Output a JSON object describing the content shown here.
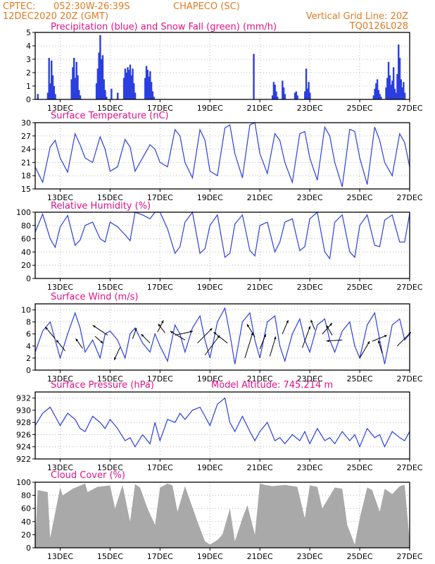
{
  "header": {
    "source": "CPTEC:",
    "coords": "052:30W-26:39S",
    "station": "CHAPECO (SC)",
    "run": "12DEC2020 20Z (GMT)",
    "grid_note": "Vertical Grid Line: 20Z",
    "model": "TQ0126L028"
  },
  "colors": {
    "series": "#2b3fe0",
    "snow": "#22c43a",
    "cloud": "#a9a9a9",
    "title": "#e0118a",
    "header": "#e07b22"
  },
  "chart_data": [
    {
      "type": "bar",
      "title": "Precipitation (blue) and Snow Fall (green) (mm/h)",
      "ylim": [
        0,
        5
      ],
      "yticks": [
        0,
        1,
        2,
        3,
        4,
        5
      ],
      "x_range": [
        12.0,
        27.0
      ],
      "xtick_values": [
        13,
        15,
        17,
        19,
        21,
        23,
        25,
        27
      ],
      "xtick_labels": [
        "13DEC",
        "15DEC",
        "17DEC",
        "19DEC",
        "21DEC",
        "23DEC",
        "25DEC",
        "27DEC"
      ],
      "vertical_grid": "20Z",
      "series": [
        {
          "name": "Precipitation",
          "x": [
            12.1,
            12.5,
            12.55,
            12.6,
            12.65,
            12.7,
            12.75,
            12.8,
            13.45,
            13.5,
            13.55,
            13.6,
            13.65,
            13.7,
            13.75,
            13.8,
            14.45,
            14.5,
            14.55,
            14.6,
            14.65,
            14.7,
            14.75,
            14.8,
            14.85,
            15.05,
            15.3,
            15.55,
            15.6,
            15.65,
            15.7,
            15.75,
            15.8,
            15.85,
            15.9,
            15.95,
            16.0,
            16.4,
            16.45,
            16.5,
            16.55,
            16.6,
            16.65,
            16.7,
            16.75,
            20.75,
            21.5,
            21.55,
            21.6,
            21.65,
            21.7,
            21.9,
            21.95,
            22.0,
            22.4,
            22.45,
            22.5,
            22.8,
            22.85,
            22.9,
            22.95,
            23.0,
            25.55,
            25.6,
            25.65,
            25.7,
            25.75,
            25.8,
            25.85,
            26.05,
            26.1,
            26.15,
            26.2,
            26.25,
            26.3,
            26.35,
            26.4,
            26.45,
            26.5,
            26.55,
            26.6,
            26.65,
            26.7,
            26.75,
            26.8
          ],
          "values": [
            0.4,
            0.5,
            3.1,
            1.2,
            2.9,
            1.8,
            1.0,
            0.4,
            1.5,
            2.4,
            3.1,
            1.6,
            2.8,
            1.8,
            0.7,
            0.3,
            1.2,
            2.3,
            3.5,
            4.8,
            3.0,
            3.3,
            1.5,
            0.7,
            0.2,
            0.8,
            0.5,
            1.6,
            2.3,
            2.0,
            2.4,
            2.2,
            2.6,
            1.8,
            2.3,
            1.2,
            0.5,
            1.6,
            2.5,
            2.2,
            1.7,
            2.1,
            1.3,
            0.6,
            0.2,
            3.4,
            0.3,
            1.3,
            1.1,
            0.6,
            0.2,
            1.4,
            0.9,
            0.4,
            0.5,
            0.6,
            0.3,
            0.6,
            2.3,
            0.8,
            1.3,
            0.5,
            0.3,
            0.8,
            1.2,
            1.5,
            0.7,
            0.4,
            0.2,
            0.9,
            1.6,
            2.8,
            1.8,
            1.1,
            1.4,
            2.4,
            0.8,
            0.5,
            1.9,
            4.1,
            3.1,
            1.5,
            0.9,
            1.3,
            0.5
          ]
        },
        {
          "name": "Snow Fall",
          "x": [],
          "values": []
        }
      ]
    },
    {
      "type": "line",
      "title": "Surface Temperature (nC)",
      "ylim": [
        15,
        30
      ],
      "yticks": [
        15,
        18,
        21,
        24,
        27,
        30
      ],
      "x_range": [
        12.0,
        27.0
      ],
      "xtick_values": [
        13,
        15,
        17,
        19,
        21,
        23,
        25,
        27
      ],
      "xtick_labels": [
        "13DEC",
        "15DEC",
        "17DEC",
        "19DEC",
        "21DEC",
        "23DEC",
        "25DEC",
        "27DEC"
      ],
      "x": [
        12.0,
        12.3,
        12.6,
        12.8,
        13.0,
        13.3,
        13.6,
        13.8,
        14.0,
        14.3,
        14.6,
        14.8,
        15.0,
        15.3,
        15.6,
        15.8,
        16.0,
        16.3,
        16.6,
        16.8,
        17.0,
        17.3,
        17.6,
        17.8,
        18.0,
        18.3,
        18.6,
        18.8,
        19.0,
        19.3,
        19.6,
        19.8,
        20.0,
        20.3,
        20.6,
        20.8,
        21.0,
        21.3,
        21.6,
        21.8,
        22.0,
        22.3,
        22.6,
        22.8,
        23.0,
        23.3,
        23.6,
        23.8,
        24.0,
        24.3,
        24.6,
        24.8,
        25.0,
        25.3,
        25.6,
        25.8,
        26.0,
        26.3,
        26.6,
        26.8,
        27.0
      ],
      "values": [
        20,
        16.5,
        24.5,
        26,
        22,
        18.8,
        27.5,
        25,
        22,
        21,
        26.8,
        24,
        19,
        20,
        26.2,
        24.5,
        19,
        22,
        25,
        24,
        21,
        20,
        28.4,
        27,
        21,
        17.5,
        28.4,
        26,
        19,
        18,
        28.8,
        29.5,
        23,
        17.5,
        29.5,
        30,
        23,
        18.5,
        27.5,
        26,
        21,
        16.5,
        27.5,
        28,
        22,
        17,
        29,
        27,
        21,
        15.5,
        28.5,
        28,
        22,
        16,
        29,
        26,
        21,
        18,
        27.5,
        25.5,
        20
      ]
    },
    {
      "type": "line",
      "title": "Relative Humidity (%)",
      "ylim": [
        0,
        100
      ],
      "yticks": [
        0,
        20,
        40,
        60,
        80,
        100
      ],
      "x_range": [
        12.0,
        27.0
      ],
      "xtick_values": [
        13,
        15,
        17,
        19,
        21,
        23,
        25,
        27
      ],
      "xtick_labels": [
        "13DEC",
        "15DEC",
        "17DEC",
        "19DEC",
        "21DEC",
        "23DEC",
        "25DEC",
        "27DEC"
      ],
      "x": [
        12.0,
        12.3,
        12.6,
        12.8,
        13.0,
        13.3,
        13.6,
        13.8,
        14.0,
        14.3,
        14.6,
        14.8,
        15.0,
        15.3,
        15.6,
        15.8,
        16.0,
        16.3,
        16.6,
        16.8,
        17.0,
        17.3,
        17.6,
        17.8,
        18.0,
        18.3,
        18.6,
        18.8,
        19.0,
        19.3,
        19.6,
        19.8,
        20.0,
        20.3,
        20.6,
        20.8,
        21.0,
        21.3,
        21.6,
        21.8,
        22.0,
        22.3,
        22.6,
        22.8,
        23.0,
        23.3,
        23.6,
        23.8,
        24.0,
        24.3,
        24.6,
        24.8,
        25.0,
        25.3,
        25.6,
        25.8,
        26.0,
        26.3,
        26.6,
        26.8,
        27.0
      ],
      "values": [
        70,
        97,
        60,
        47,
        78,
        95,
        50,
        58,
        80,
        85,
        60,
        55,
        85,
        78,
        66,
        57,
        100,
        96,
        90,
        100,
        100,
        75,
        38,
        48,
        85,
        100,
        38,
        45,
        80,
        96,
        32,
        38,
        82,
        96,
        42,
        34,
        80,
        85,
        40,
        55,
        85,
        90,
        42,
        48,
        90,
        100,
        40,
        30,
        85,
        96,
        40,
        32,
        80,
        96,
        50,
        48,
        88,
        96,
        55,
        55,
        98
      ]
    },
    {
      "type": "line",
      "title": "Surface Wind (m/s)",
      "ylim": [
        0,
        11
      ],
      "yticks": [
        0,
        2,
        4,
        6,
        8,
        10
      ],
      "x_range": [
        12.0,
        27.0
      ],
      "xtick_values": [
        13,
        15,
        17,
        19,
        21,
        23,
        25,
        27
      ],
      "xtick_labels": [
        "13DEC",
        "15DEC",
        "17DEC",
        "19DEC",
        "21DEC",
        "23DEC",
        "25DEC",
        "27DEC"
      ],
      "x": [
        12.0,
        12.3,
        12.6,
        12.8,
        13.0,
        13.3,
        13.6,
        13.8,
        14.0,
        14.3,
        14.6,
        14.8,
        15.0,
        15.3,
        15.6,
        15.8,
        16.0,
        16.3,
        16.6,
        16.8,
        17.0,
        17.3,
        17.6,
        17.8,
        18.0,
        18.3,
        18.6,
        18.8,
        19.0,
        19.3,
        19.6,
        19.8,
        20.0,
        20.3,
        20.6,
        20.8,
        21.0,
        21.3,
        21.6,
        21.8,
        22.0,
        22.3,
        22.6,
        22.8,
        23.0,
        23.3,
        23.6,
        23.8,
        24.0,
        24.3,
        24.6,
        24.8,
        25.0,
        25.3,
        25.6,
        25.8,
        26.0,
        26.3,
        26.6,
        26.8,
        27.0
      ],
      "values": [
        3,
        6.5,
        8,
        5,
        2,
        6,
        9.5,
        7,
        3,
        5,
        2,
        6,
        6.5,
        5,
        2,
        6,
        7,
        4.5,
        3,
        6,
        4,
        1.5,
        7.5,
        6,
        3,
        7,
        9,
        5,
        2,
        8,
        10.3,
        6,
        1,
        8,
        9.5,
        5,
        2,
        8,
        9,
        4,
        1.5,
        6,
        8.5,
        5,
        3,
        7.5,
        8.5,
        5,
        3,
        6.5,
        8,
        4,
        2,
        7.5,
        9.5,
        5,
        1,
        7.5,
        8.5,
        5,
        6
      ],
      "wind_vectors": [
        {
          "x": 12.8,
          "y": 5.2,
          "u": -1.0,
          "v": 1.2
        },
        {
          "x": 13.2,
          "y": 3.2,
          "u": -0.9,
          "v": 1.1
        },
        {
          "x": 13.9,
          "y": 3.6,
          "u": -0.7,
          "v": 1.0
        },
        {
          "x": 14.4,
          "y": 5.6,
          "u": 0.8,
          "v": -0.7
        },
        {
          "x": 14.9,
          "y": 5.8,
          "u": -1.5,
          "v": 1.0
        },
        {
          "x": 15.4,
          "y": 3.8,
          "u": -0.6,
          "v": -1.3
        },
        {
          "x": 15.9,
          "y": 5.2,
          "u": 0.4,
          "v": 1.1
        },
        {
          "x": 16.6,
          "y": 4.5,
          "u": -0.9,
          "v": 0.9
        },
        {
          "x": 16.9,
          "y": 6.3,
          "u": 0.6,
          "v": 1.2
        },
        {
          "x": 17.2,
          "y": 6.2,
          "u": -0.7,
          "v": 0.9
        },
        {
          "x": 17.6,
          "y": 5.8,
          "u": 1.8,
          "v": 0.4
        },
        {
          "x": 18.0,
          "y": 5.0,
          "u": -1.5,
          "v": 0.9
        },
        {
          "x": 18.5,
          "y": 4.5,
          "u": 1.5,
          "v": 1.5
        },
        {
          "x": 18.8,
          "y": 2.5,
          "u": 1.5,
          "v": 2.0
        },
        {
          "x": 19.7,
          "y": 4.5,
          "u": -1.4,
          "v": 1.1
        },
        {
          "x": 20.4,
          "y": 2.0,
          "u": 0.8,
          "v": 2.6
        },
        {
          "x": 20.8,
          "y": 5.5,
          "u": -0.8,
          "v": 1.3
        },
        {
          "x": 21.0,
          "y": 3.5,
          "u": 0.6,
          "v": 1.5
        },
        {
          "x": 21.4,
          "y": 2.3,
          "u": 0.6,
          "v": 2.0
        },
        {
          "x": 21.9,
          "y": 6.0,
          "u": 0.6,
          "v": 1.4
        },
        {
          "x": 22.7,
          "y": 3.7,
          "u": 0.8,
          "v": 2.2
        },
        {
          "x": 23.2,
          "y": 6.7,
          "u": -0.4,
          "v": 1.0
        },
        {
          "x": 23.5,
          "y": 6.0,
          "u": 1.0,
          "v": 1.1
        },
        {
          "x": 23.9,
          "y": 5.8,
          "u": -0.6,
          "v": 1.0
        },
        {
          "x": 24.3,
          "y": 5.0,
          "u": -1.6,
          "v": -0.1
        },
        {
          "x": 25.0,
          "y": 2.0,
          "u": 1.0,
          "v": 1.7
        },
        {
          "x": 25.5,
          "y": 4.8,
          "u": 1.5,
          "v": 0.6
        },
        {
          "x": 25.9,
          "y": 2.8,
          "u": -0.4,
          "v": 1.3
        },
        {
          "x": 26.5,
          "y": 4.0,
          "u": 1.4,
          "v": 1.4
        }
      ]
    },
    {
      "type": "line",
      "title": "Surface Pressure (hPa)",
      "annotation": "Model Altitude: 745.214 m",
      "ylim": [
        922,
        933
      ],
      "yticks": [
        922,
        924,
        926,
        928,
        930,
        932
      ],
      "x_range": [
        12.0,
        27.0
      ],
      "xtick_values": [
        13,
        15,
        17,
        19,
        21,
        23,
        25,
        27
      ],
      "xtick_labels": [
        "13DEC",
        "15DEC",
        "17DEC",
        "19DEC",
        "21DEC",
        "23DEC",
        "25DEC",
        "27DEC"
      ],
      "x": [
        12.0,
        12.3,
        12.6,
        12.8,
        13.0,
        13.3,
        13.6,
        13.8,
        14.0,
        14.3,
        14.6,
        14.8,
        15.0,
        15.3,
        15.6,
        15.8,
        16.0,
        16.3,
        16.6,
        16.8,
        17.0,
        17.3,
        17.6,
        17.8,
        18.0,
        18.3,
        18.6,
        18.8,
        19.0,
        19.3,
        19.6,
        19.8,
        20.0,
        20.3,
        20.6,
        20.8,
        21.0,
        21.3,
        21.6,
        21.8,
        22.0,
        22.3,
        22.6,
        22.8,
        23.0,
        23.3,
        23.6,
        23.8,
        24.0,
        24.3,
        24.6,
        24.8,
        25.0,
        25.3,
        25.6,
        25.8,
        26.0,
        26.3,
        26.6,
        26.8,
        27.0
      ],
      "values": [
        927.5,
        929.5,
        930.5,
        929,
        927.5,
        929.5,
        928.5,
        927,
        926.5,
        929,
        928,
        927,
        928.5,
        927,
        925,
        925.5,
        924,
        926,
        924.5,
        928,
        925,
        928.5,
        928,
        929.5,
        928.5,
        930,
        930.5,
        929,
        927.5,
        931,
        932,
        928,
        926.5,
        929,
        926.5,
        925,
        926.5,
        928,
        925,
        925.5,
        924.5,
        926,
        925,
        926.5,
        924.5,
        927,
        925,
        925.5,
        924.5,
        926.5,
        925,
        926,
        924,
        927,
        925.5,
        926,
        924,
        926.5,
        925.5,
        925,
        926.5
      ]
    },
    {
      "type": "area",
      "title": "Cloud Cover (%)",
      "ylim": [
        0,
        100
      ],
      "yticks": [
        0,
        20,
        40,
        60,
        80,
        100
      ],
      "x_range": [
        12.0,
        27.0
      ],
      "xtick_values": [
        13,
        15,
        17,
        19,
        21,
        23,
        25,
        27
      ],
      "xtick_labels": [
        "13DEC",
        "15DEC",
        "17DEC",
        "19DEC",
        "21DEC",
        "23DEC",
        "25DEC",
        "27DEC"
      ],
      "x": [
        12.0,
        12.1,
        12.5,
        12.6,
        13.0,
        13.1,
        13.5,
        14.0,
        14.1,
        14.5,
        15.0,
        15.2,
        15.5,
        15.8,
        16.0,
        16.2,
        16.5,
        16.8,
        17.0,
        17.3,
        17.5,
        17.7,
        18.0,
        18.5,
        18.8,
        19.0,
        19.3,
        19.5,
        19.8,
        20.0,
        20.3,
        20.5,
        20.8,
        21.0,
        21.2,
        21.5,
        22.0,
        22.5,
        22.8,
        23.0,
        23.3,
        23.5,
        24.0,
        24.3,
        24.5,
        24.8,
        25.0,
        25.3,
        25.5,
        25.8,
        26.0,
        26.3,
        26.6,
        26.8,
        27.0
      ],
      "values": [
        10,
        88,
        85,
        15,
        92,
        80,
        90,
        98,
        85,
        93,
        95,
        60,
        96,
        40,
        97,
        92,
        60,
        35,
        92,
        98,
        95,
        55,
        94,
        40,
        10,
        5,
        12,
        20,
        60,
        10,
        45,
        65,
        20,
        98,
        96,
        94,
        96,
        93,
        45,
        95,
        93,
        60,
        92,
        90,
        35,
        5,
        45,
        92,
        88,
        55,
        90,
        82,
        94,
        96,
        10
      ]
    }
  ]
}
